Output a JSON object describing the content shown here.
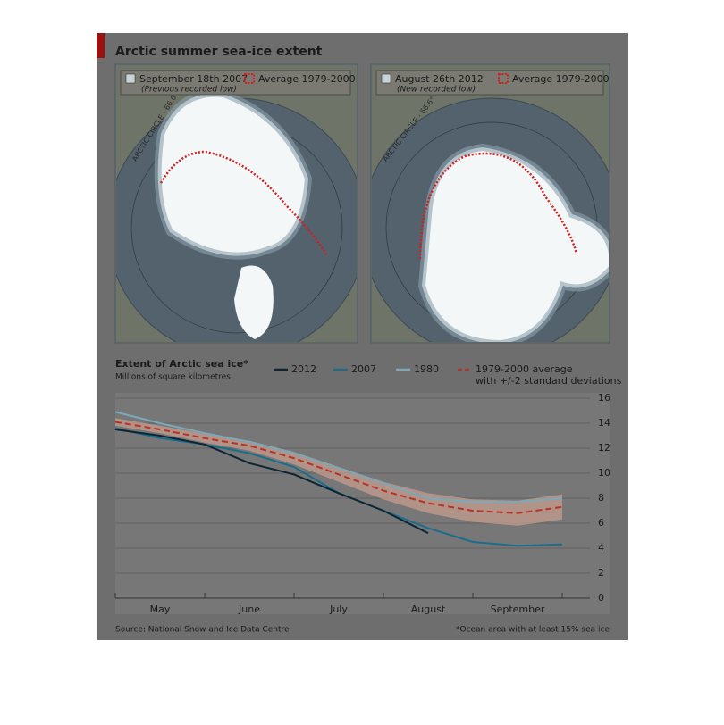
{
  "title": "Arctic summer sea-ice extent",
  "maps": [
    {
      "label": "September 18th 2007",
      "note": "(Previous recorded low)",
      "legend": "Average 1979-2000",
      "circle": "ARCTIC CIRCLE - 66.6°"
    },
    {
      "label": "August 26th 2012",
      "note": "(New recorded low)",
      "legend": "Average 1979-2000",
      "circle": "ARCTIC CIRCLE - 66.6°"
    }
  ],
  "chart_data": {
    "type": "line",
    "title": "Extent of Arctic sea ice*",
    "subtitle": "Millions of square kilometres",
    "categories": [
      null,
      "May",
      null,
      "June",
      null,
      "July",
      null,
      "August",
      null,
      "September",
      null
    ],
    "series": [
      {
        "name": "2012",
        "color": "#0d2533",
        "values": [
          13.5,
          13.0,
          12.3,
          10.8,
          9.9,
          8.4,
          7.0,
          5.2,
          null,
          null,
          null
        ]
      },
      {
        "name": "2007",
        "color": "#1b6d8c",
        "values": [
          13.6,
          12.8,
          12.3,
          11.6,
          10.5,
          8.4,
          7.0,
          5.6,
          4.5,
          4.2,
          4.3
        ]
      },
      {
        "name": "1980",
        "color": "#79a9bb",
        "values": [
          14.9,
          14.0,
          13.2,
          12.5,
          11.6,
          10.4,
          9.2,
          8.0,
          7.7,
          7.7,
          8.0
        ]
      },
      {
        "name": "1979-2000 average",
        "color": "#b8322a",
        "dashed": true,
        "band_label": "with +/-2 standard deviations",
        "band_color": "#caa08f",
        "values": [
          14.1,
          13.5,
          12.8,
          12.2,
          11.2,
          9.9,
          8.6,
          7.6,
          7.0,
          6.8,
          7.3
        ],
        "deviation": [
          0.3,
          0.3,
          0.35,
          0.4,
          0.5,
          0.6,
          0.7,
          0.8,
          0.9,
          1.0,
          1.0
        ]
      }
    ],
    "ylim": [
      0,
      16
    ],
    "yticks": [
      0,
      2,
      4,
      6,
      8,
      10,
      12,
      14,
      16
    ],
    "grid": true,
    "source": "Source: National Snow and Ice Data Centre",
    "note": "*Ocean area with at least 15% sea ice"
  }
}
